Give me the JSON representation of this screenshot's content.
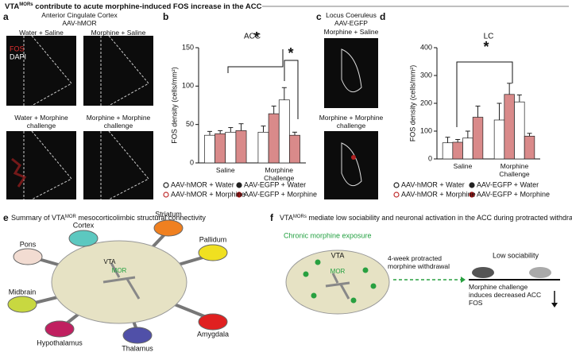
{
  "title": {
    "prefix": "VTA",
    "sup": "MORs",
    "rest": " contribute to acute morphine-induced FOS increase in the ACC"
  },
  "panel_labels": [
    "a",
    "b",
    "c",
    "d",
    "e",
    "f"
  ],
  "panel_a": {
    "region": "Anterior Cingulate Cortex",
    "virus": "AAV-hMOR",
    "stain_1": "FOS",
    "stain_2": "DAPI",
    "images": [
      "Water + Saline",
      "Morphine + Saline",
      "Water + Morphine challenge",
      "Morphine + Morphine challenge"
    ]
  },
  "panel_c": {
    "region": "Locus Coeruleus",
    "virus": "AAV-EGFP",
    "images": [
      "Morphine + Saline",
      "Morphine + Morphine challenge"
    ]
  },
  "chart_data": [
    {
      "type": "bar",
      "title": "ACC",
      "y_label": "FOS density (cells/mm²)",
      "categories": [
        "Saline",
        "Morphine Challenge"
      ],
      "ylim": [
        0,
        150
      ],
      "yticks": [
        0,
        50,
        100,
        150
      ],
      "annotations": [
        "*",
        "*"
      ],
      "series": [
        {
          "name": "AAV-EGFP + Water",
          "color": "#ffffff",
          "marker_color": "#222222",
          "marker_fill": true,
          "values": [
            36,
            40
          ],
          "errors": [
            5,
            8
          ]
        },
        {
          "name": "AAV-EGFP + Morphine",
          "color": "#d98a8a",
          "marker_color": "#a01818",
          "marker_fill": true,
          "values": [
            38,
            64
          ],
          "errors": [
            4,
            10
          ]
        },
        {
          "name": "AAV-hMOR + Water",
          "color": "#ffffff",
          "marker_color": "#222222",
          "marker_fill": false,
          "values": [
            40,
            82
          ],
          "errors": [
            6,
            16
          ]
        },
        {
          "name": "AAV-hMOR + Morphine",
          "color": "#d98a8a",
          "marker_color": "#c03030",
          "marker_fill": false,
          "values": [
            42,
            36
          ],
          "errors": [
            9,
            4
          ]
        }
      ]
    },
    {
      "type": "bar",
      "title": "LC",
      "y_label": "FOS density (cells/mm²)",
      "categories": [
        "Saline",
        "Morphine Challenge"
      ],
      "ylim": [
        0,
        400
      ],
      "yticks": [
        0,
        100,
        200,
        300,
        400
      ],
      "annotations": [
        "*"
      ],
      "series": [
        {
          "name": "AAV-EGFP + Water",
          "color": "#ffffff",
          "marker_color": "#222222",
          "marker_fill": true,
          "values": [
            58,
            140
          ],
          "errors": [
            20,
            60
          ]
        },
        {
          "name": "AAV-EGFP + Morphine",
          "color": "#d98a8a",
          "marker_color": "#a01818",
          "marker_fill": true,
          "values": [
            60,
            232
          ],
          "errors": [
            10,
            40
          ]
        },
        {
          "name": "AAV-hMOR + Water",
          "color": "#ffffff",
          "marker_color": "#222222",
          "marker_fill": false,
          "values": [
            75,
            205
          ],
          "errors": [
            25,
            25
          ]
        },
        {
          "name": "AAV-hMOR + Morphine",
          "color": "#d98a8a",
          "marker_color": "#c03030",
          "marker_fill": false,
          "values": [
            150,
            82
          ],
          "errors": [
            40,
            10
          ]
        }
      ]
    }
  ],
  "panel_e": {
    "title_prefix": "Summary of VTA",
    "title_sup": "MOR",
    "title_rest": " mesocorticolimbic structural connectivity",
    "center": "VTA",
    "receptor": "MOR",
    "nodes": [
      {
        "label": "Cortex",
        "color": "#5cc8c0"
      },
      {
        "label": "Striatum",
        "color": "#f08020"
      },
      {
        "label": "Pons",
        "color": "#f2dcd2"
      },
      {
        "label": "Pallidum",
        "color": "#f0e020"
      },
      {
        "label": "Midbrain",
        "color": "#c8d840"
      },
      {
        "label": "Hypothalamus",
        "color": "#c02060"
      },
      {
        "label": "Thalamus",
        "color": "#5050a8"
      },
      {
        "label": "Amygdala",
        "color": "#e02020"
      }
    ]
  },
  "panel_f": {
    "title_prefix": "VTA",
    "title_sup": "MORs",
    "title_rest": " mediate low sociability and neuronal activation in the ACC during protracted withdrawal",
    "exposure": "Chronic morphine exposure",
    "center": "VTA",
    "receptor": "MOR",
    "withdrawal": "4-week protracted morphine withdrawal",
    "behavior": "Low sociability",
    "outcome": "Morphine challenge induces decreased ACC FOS"
  }
}
